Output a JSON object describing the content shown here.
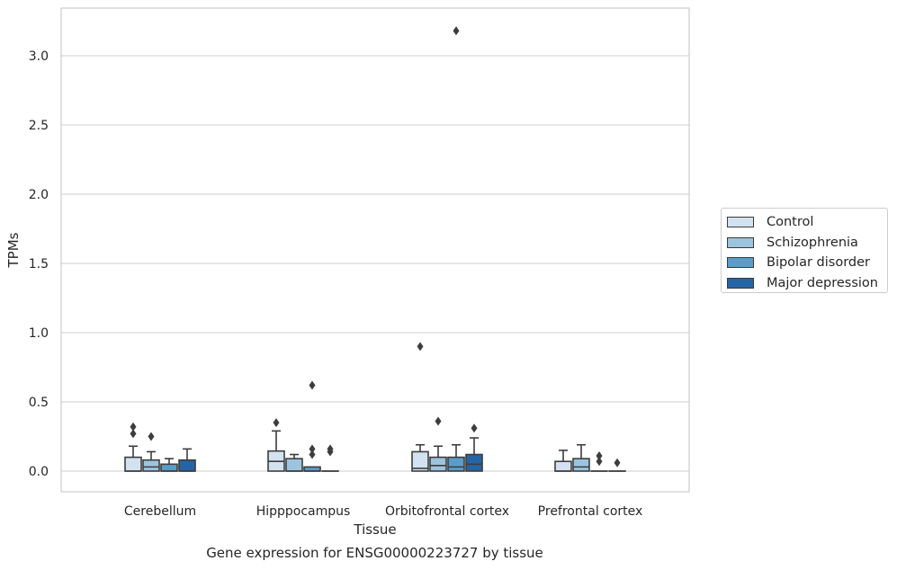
{
  "chart_data": {
    "type": "box",
    "ylabel": "TPMs",
    "xlabel": "Tissue",
    "caption": "Gene expression for ENSG00000223727 by tissue",
    "ylim": [
      -0.15,
      3.35
    ],
    "yticks": [
      "0.0",
      "0.5",
      "1.0",
      "1.5",
      "2.0",
      "2.5",
      "3.0"
    ],
    "grid": "horizontal",
    "legend_position": "right",
    "categories": [
      "Cerebellum",
      "Hipppocampus",
      "Orbitofrontal cortex",
      "Prefrontal cortex"
    ],
    "series": [
      {
        "name": "Control",
        "color": "#d3e2f1",
        "boxes": [
          {
            "q1": 0.0,
            "median": 0.0,
            "q3": 0.1,
            "whisker_low": 0.0,
            "whisker_high": 0.18,
            "outliers": [
              0.27,
              0.32
            ]
          },
          {
            "q1": 0.0,
            "median": 0.07,
            "q3": 0.145,
            "whisker_low": 0.0,
            "whisker_high": 0.29,
            "outliers": [
              0.35
            ]
          },
          {
            "q1": 0.0,
            "median": 0.02,
            "q3": 0.14,
            "whisker_low": 0.0,
            "whisker_high": 0.19,
            "outliers": [
              0.9
            ]
          },
          {
            "q1": 0.0,
            "median": 0.0,
            "q3": 0.07,
            "whisker_low": 0.0,
            "whisker_high": 0.15,
            "outliers": []
          }
        ]
      },
      {
        "name": "Schizophrenia",
        "color": "#9cc4de",
        "boxes": [
          {
            "q1": 0.0,
            "median": 0.03,
            "q3": 0.08,
            "whisker_low": 0.0,
            "whisker_high": 0.14,
            "outliers": [
              0.25
            ]
          },
          {
            "q1": 0.0,
            "median": 0.0,
            "q3": 0.09,
            "whisker_low": 0.0,
            "whisker_high": 0.12,
            "outliers": []
          },
          {
            "q1": 0.0,
            "median": 0.04,
            "q3": 0.1,
            "whisker_low": 0.0,
            "whisker_high": 0.18,
            "outliers": [
              0.36
            ]
          },
          {
            "q1": 0.0,
            "median": 0.03,
            "q3": 0.09,
            "whisker_low": 0.0,
            "whisker_high": 0.19,
            "outliers": []
          }
        ]
      },
      {
        "name": "Bipolar disorder",
        "color": "#5b9cc9",
        "boxes": [
          {
            "q1": 0.0,
            "median": 0.0,
            "q3": 0.05,
            "whisker_low": 0.0,
            "whisker_high": 0.09,
            "outliers": []
          },
          {
            "q1": 0.0,
            "median": 0.0,
            "q3": 0.03,
            "whisker_low": 0.0,
            "whisker_high": 0.03,
            "outliers": [
              0.12,
              0.16,
              0.62
            ]
          },
          {
            "q1": 0.0,
            "median": 0.03,
            "q3": 0.1,
            "whisker_low": 0.0,
            "whisker_high": 0.19,
            "outliers": [
              3.18
            ]
          },
          {
            "q1": 0.0,
            "median": 0.0,
            "q3": 0.0,
            "whisker_low": 0.0,
            "whisker_high": 0.0,
            "outliers": [
              0.07,
              0.11
            ]
          }
        ]
      },
      {
        "name": "Major depression",
        "color": "#2565a5",
        "boxes": [
          {
            "q1": 0.0,
            "median": 0.0,
            "q3": 0.08,
            "whisker_low": 0.0,
            "whisker_high": 0.16,
            "outliers": []
          },
          {
            "q1": 0.0,
            "median": 0.0,
            "q3": 0.0,
            "whisker_low": 0.0,
            "whisker_high": 0.0,
            "outliers": [
              0.14,
              0.16
            ]
          },
          {
            "q1": 0.0,
            "median": 0.05,
            "q3": 0.12,
            "whisker_low": 0.0,
            "whisker_high": 0.24,
            "outliers": [
              0.31
            ]
          },
          {
            "q1": 0.0,
            "median": 0.0,
            "q3": 0.0,
            "whisker_low": 0.0,
            "whisker_high": 0.0,
            "outliers": [
              0.06
            ]
          }
        ]
      }
    ]
  }
}
